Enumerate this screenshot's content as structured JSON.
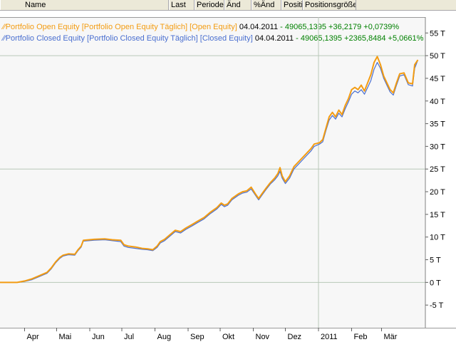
{
  "header": {
    "columns": [
      {
        "label": "Name"
      },
      {
        "label": "Last"
      },
      {
        "label": "Periode"
      },
      {
        "label": "Änd"
      },
      {
        "label": "%Änd"
      },
      {
        "label": "Positi"
      },
      {
        "label": "Positionsgröße"
      }
    ]
  },
  "legend": [
    {
      "name": "Portfolio Open Equity [Portfolio Open Equity  Täglich] [Open Equity]",
      "date": "04.04.2011",
      "values": "- 49065,1395 +36,2179 +0,0739%",
      "color": "#f39c12"
    },
    {
      "name": "Portfolio Closed Equity [Portfolio Closed Equity  Täglich] [Closed Equity]",
      "date": "04.04.2011",
      "values": "- 49065,1395 +2365,8484 +5,0661%",
      "color": "#4a6fd0"
    }
  ],
  "colors": {
    "open_equity": "#f39c12",
    "closed_equity": "#4a6fd0",
    "values_text": "#008000",
    "background": "#f7f7f7",
    "gridline": "#b8c8b8"
  },
  "chart_data": {
    "type": "line",
    "x_tick_labels": [
      "Apr",
      "Mai",
      "Jun",
      "Jul",
      "Aug",
      "Sep",
      "Okt",
      "Nov",
      "Dez",
      "2011",
      "Feb",
      "Mär"
    ],
    "y_tick_labels": [
      "-5 T",
      "0 T",
      "5 T",
      "10 T",
      "15 T",
      "20 T",
      "25 T",
      "30 T",
      "35 T",
      "40 T",
      "45 T",
      "50 T",
      "55 T"
    ],
    "y_ticks": [
      -5000,
      0,
      5000,
      10000,
      15000,
      20000,
      25000,
      30000,
      35000,
      40000,
      45000,
      50000,
      55000
    ],
    "ylim": [
      -10000,
      58500
    ],
    "gridlines_y": [
      0,
      25000,
      50000
    ],
    "gridlines_x": [
      "2011"
    ],
    "month_ticks": [
      "2010-04-01",
      "2010-05-01",
      "2010-06-01",
      "2010-07-01",
      "2010-08-01",
      "2010-09-01",
      "2010-10-01",
      "2010-11-01",
      "2010-12-01",
      "2011-01-01",
      "2011-02-01",
      "2011-03-01"
    ],
    "xlim": [
      "2010-03-09",
      "2011-04-11"
    ],
    "series": [
      {
        "name": "Portfolio Open Equity",
        "points": [
          [
            "2010-03-09",
            0
          ],
          [
            "2010-03-25",
            0
          ],
          [
            "2010-04-01",
            300
          ],
          [
            "2010-04-08",
            800
          ],
          [
            "2010-04-15",
            1500
          ],
          [
            "2010-04-22",
            2200
          ],
          [
            "2010-04-26",
            3200
          ],
          [
            "2010-04-30",
            4500
          ],
          [
            "2010-05-04",
            5500
          ],
          [
            "2010-05-07",
            6000
          ],
          [
            "2010-05-12",
            6300
          ],
          [
            "2010-05-18",
            6200
          ],
          [
            "2010-05-21",
            7200
          ],
          [
            "2010-05-24",
            8000
          ],
          [
            "2010-05-26",
            9300
          ],
          [
            "2010-06-05",
            9500
          ],
          [
            "2010-06-15",
            9600
          ],
          [
            "2010-06-22",
            9400
          ],
          [
            "2010-06-30",
            9300
          ],
          [
            "2010-07-03",
            8300
          ],
          [
            "2010-07-07",
            8000
          ],
          [
            "2010-07-14",
            7800
          ],
          [
            "2010-07-20",
            7500
          ],
          [
            "2010-07-25",
            7400
          ],
          [
            "2010-07-30",
            7200
          ],
          [
            "2010-08-03",
            8000
          ],
          [
            "2010-08-06",
            9000
          ],
          [
            "2010-08-10",
            9500
          ],
          [
            "2010-08-15",
            10500
          ],
          [
            "2010-08-20",
            11500
          ],
          [
            "2010-08-25",
            11200
          ],
          [
            "2010-08-30",
            12000
          ],
          [
            "2010-09-05",
            12800
          ],
          [
            "2010-09-10",
            13500
          ],
          [
            "2010-09-16",
            14300
          ],
          [
            "2010-09-22",
            15500
          ],
          [
            "2010-09-28",
            16500
          ],
          [
            "2010-10-02",
            17500
          ],
          [
            "2010-10-05",
            17000
          ],
          [
            "2010-10-08",
            17300
          ],
          [
            "2010-10-12",
            18500
          ],
          [
            "2010-10-18",
            19500
          ],
          [
            "2010-10-22",
            20000
          ],
          [
            "2010-10-26",
            20200
          ],
          [
            "2010-10-30",
            21000
          ],
          [
            "2010-11-03",
            19500
          ],
          [
            "2010-11-06",
            18500
          ],
          [
            "2010-11-09",
            19500
          ],
          [
            "2010-11-13",
            20800
          ],
          [
            "2010-11-17",
            22000
          ],
          [
            "2010-11-21",
            23000
          ],
          [
            "2010-11-24",
            24000
          ],
          [
            "2010-11-26",
            25300
          ],
          [
            "2010-11-28",
            23500
          ],
          [
            "2010-12-01",
            22200
          ],
          [
            "2010-12-05",
            23500
          ],
          [
            "2010-12-09",
            25500
          ],
          [
            "2010-12-13",
            26500
          ],
          [
            "2010-12-17",
            27500
          ],
          [
            "2010-12-21",
            28500
          ],
          [
            "2010-12-25",
            29500
          ],
          [
            "2010-12-28",
            30500
          ],
          [
            "2011-01-02",
            30800
          ],
          [
            "2011-01-05",
            31500
          ],
          [
            "2011-01-08",
            34000
          ],
          [
            "2011-01-11",
            36500
          ],
          [
            "2011-01-14",
            37500
          ],
          [
            "2011-01-17",
            36500
          ],
          [
            "2011-01-20",
            38000
          ],
          [
            "2011-01-23",
            37000
          ],
          [
            "2011-01-26",
            39000
          ],
          [
            "2011-01-29",
            40500
          ],
          [
            "2011-02-01",
            42500
          ],
          [
            "2011-02-04",
            43000
          ],
          [
            "2011-02-07",
            42500
          ],
          [
            "2011-02-10",
            43500
          ],
          [
            "2011-02-13",
            42200
          ],
          [
            "2011-02-16",
            44000
          ],
          [
            "2011-02-19",
            45800
          ],
          [
            "2011-02-22",
            48500
          ],
          [
            "2011-02-25",
            49800
          ],
          [
            "2011-02-28",
            48000
          ],
          [
            "2011-03-03",
            45500
          ],
          [
            "2011-03-06",
            44000
          ],
          [
            "2011-03-09",
            42500
          ],
          [
            "2011-03-12",
            41800
          ],
          [
            "2011-03-15",
            44000
          ],
          [
            "2011-03-18",
            46000
          ],
          [
            "2011-03-22",
            46200
          ],
          [
            "2011-03-26",
            44000
          ],
          [
            "2011-03-30",
            43800
          ],
          [
            "2011-04-01",
            48000
          ],
          [
            "2011-04-04",
            49065
          ]
        ]
      },
      {
        "name": "Portfolio Closed Equity",
        "points": [
          [
            "2010-03-09",
            0
          ],
          [
            "2010-03-25",
            0
          ],
          [
            "2010-04-01",
            200
          ],
          [
            "2010-04-08",
            600
          ],
          [
            "2010-04-15",
            1300
          ],
          [
            "2010-04-22",
            2000
          ],
          [
            "2010-04-26",
            3000
          ],
          [
            "2010-04-30",
            4300
          ],
          [
            "2010-05-04",
            5300
          ],
          [
            "2010-05-07",
            5800
          ],
          [
            "2010-05-12",
            6100
          ],
          [
            "2010-05-18",
            6000
          ],
          [
            "2010-05-21",
            7000
          ],
          [
            "2010-05-24",
            7800
          ],
          [
            "2010-05-26",
            9100
          ],
          [
            "2010-06-05",
            9300
          ],
          [
            "2010-06-15",
            9400
          ],
          [
            "2010-06-22",
            9200
          ],
          [
            "2010-06-30",
            9000
          ],
          [
            "2010-07-03",
            8000
          ],
          [
            "2010-07-07",
            7700
          ],
          [
            "2010-07-14",
            7500
          ],
          [
            "2010-07-20",
            7300
          ],
          [
            "2010-07-25",
            7200
          ],
          [
            "2010-07-30",
            7000
          ],
          [
            "2010-08-03",
            7700
          ],
          [
            "2010-08-06",
            8700
          ],
          [
            "2010-08-10",
            9200
          ],
          [
            "2010-08-15",
            10200
          ],
          [
            "2010-08-20",
            11200
          ],
          [
            "2010-08-25",
            10900
          ],
          [
            "2010-08-30",
            11700
          ],
          [
            "2010-09-05",
            12500
          ],
          [
            "2010-09-10",
            13200
          ],
          [
            "2010-09-16",
            14000
          ],
          [
            "2010-09-22",
            15200
          ],
          [
            "2010-09-28",
            16200
          ],
          [
            "2010-10-02",
            17200
          ],
          [
            "2010-10-05",
            16700
          ],
          [
            "2010-10-08",
            17000
          ],
          [
            "2010-10-12",
            18200
          ],
          [
            "2010-10-18",
            19200
          ],
          [
            "2010-10-22",
            19700
          ],
          [
            "2010-10-26",
            19900
          ],
          [
            "2010-10-30",
            20600
          ],
          [
            "2010-11-03",
            19200
          ],
          [
            "2010-11-06",
            18200
          ],
          [
            "2010-11-09",
            19200
          ],
          [
            "2010-11-13",
            20500
          ],
          [
            "2010-11-17",
            21700
          ],
          [
            "2010-11-21",
            22600
          ],
          [
            "2010-11-24",
            23500
          ],
          [
            "2010-11-26",
            24500
          ],
          [
            "2010-11-28",
            23000
          ],
          [
            "2010-12-01",
            21800
          ],
          [
            "2010-12-05",
            23000
          ],
          [
            "2010-12-09",
            25000
          ],
          [
            "2010-12-13",
            26000
          ],
          [
            "2010-12-17",
            27000
          ],
          [
            "2010-12-21",
            28000
          ],
          [
            "2010-12-25",
            29000
          ],
          [
            "2010-12-28",
            30000
          ],
          [
            "2011-01-02",
            30500
          ],
          [
            "2011-01-05",
            31000
          ],
          [
            "2011-01-08",
            33500
          ],
          [
            "2011-01-11",
            35800
          ],
          [
            "2011-01-14",
            36800
          ],
          [
            "2011-01-17",
            36000
          ],
          [
            "2011-01-20",
            37300
          ],
          [
            "2011-01-23",
            36500
          ],
          [
            "2011-01-26",
            38300
          ],
          [
            "2011-01-29",
            39800
          ],
          [
            "2011-02-01",
            41500
          ],
          [
            "2011-02-04",
            42200
          ],
          [
            "2011-02-07",
            41800
          ],
          [
            "2011-02-10",
            42500
          ],
          [
            "2011-02-13",
            41500
          ],
          [
            "2011-02-16",
            43000
          ],
          [
            "2011-02-19",
            44500
          ],
          [
            "2011-02-22",
            47000
          ],
          [
            "2011-02-25",
            48500
          ],
          [
            "2011-02-28",
            47200
          ],
          [
            "2011-03-03",
            45000
          ],
          [
            "2011-03-06",
            43500
          ],
          [
            "2011-03-09",
            42000
          ],
          [
            "2011-03-12",
            41300
          ],
          [
            "2011-03-15",
            43500
          ],
          [
            "2011-03-18",
            45500
          ],
          [
            "2011-03-22",
            45800
          ],
          [
            "2011-03-26",
            43600
          ],
          [
            "2011-03-30",
            43300
          ],
          [
            "2011-04-01",
            47200
          ],
          [
            "2011-04-04",
            49065
          ]
        ]
      }
    ]
  }
}
